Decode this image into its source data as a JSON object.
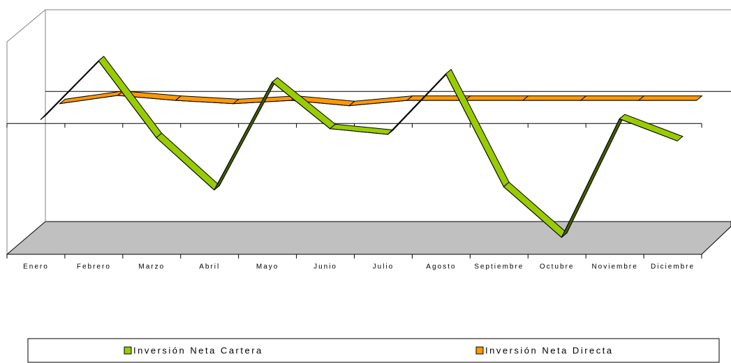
{
  "chart_data": {
    "type": "line3d",
    "categories": [
      "Enero",
      "Febrero",
      "Marzo",
      "Abril",
      "Mayo",
      "Junio",
      "Julio",
      "Agosto",
      "Septiembre",
      "Octubre",
      "Noviembre",
      "Diciembre"
    ],
    "series": [
      {
        "name": "Inversión Neta Cartera",
        "color": "#99cc00",
        "values": [
          0,
          720,
          -220,
          -860,
          460,
          -110,
          -180,
          560,
          -820,
          -1440,
          10,
          -260
        ]
      },
      {
        "name": "Inversión Neta Directa",
        "color": "#ff9900",
        "values": [
          0,
          100,
          40,
          0,
          40,
          -25,
          40,
          40,
          40,
          40,
          40,
          40
        ]
      }
    ],
    "ylim": [
      -1600,
      1000
    ],
    "grid": true,
    "legend": "bottom"
  }
}
